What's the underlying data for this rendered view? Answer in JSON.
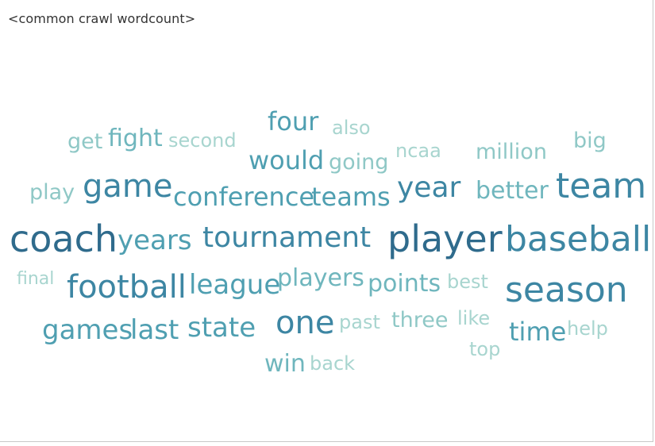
{
  "title": "<common crawl wordcount>",
  "chart_data": {
    "type": "wordcloud",
    "title": "<common crawl wordcount>",
    "words": [
      {
        "text": "coach",
        "weight": 10
      },
      {
        "text": "player",
        "weight": 10
      },
      {
        "text": "team",
        "weight": 9
      },
      {
        "text": "baseball",
        "weight": 9
      },
      {
        "text": "season",
        "weight": 9
      },
      {
        "text": "game",
        "weight": 8
      },
      {
        "text": "football",
        "weight": 8
      },
      {
        "text": "one",
        "weight": 8
      },
      {
        "text": "tournament",
        "weight": 7
      },
      {
        "text": "year",
        "weight": 7
      },
      {
        "text": "years",
        "weight": 6
      },
      {
        "text": "league",
        "weight": 6
      },
      {
        "text": "state",
        "weight": 6
      },
      {
        "text": "games",
        "weight": 6
      },
      {
        "text": "last",
        "weight": 6
      },
      {
        "text": "would",
        "weight": 5
      },
      {
        "text": "four",
        "weight": 5
      },
      {
        "text": "time",
        "weight": 5
      },
      {
        "text": "conference",
        "weight": 5
      },
      {
        "text": "teams",
        "weight": 5
      },
      {
        "text": "win",
        "weight": 4
      },
      {
        "text": "fight",
        "weight": 4
      },
      {
        "text": "players",
        "weight": 4
      },
      {
        "text": "points",
        "weight": 4
      },
      {
        "text": "better",
        "weight": 4
      },
      {
        "text": "going",
        "weight": 3
      },
      {
        "text": "three",
        "weight": 3
      },
      {
        "text": "million",
        "weight": 3
      },
      {
        "text": "big",
        "weight": 3
      },
      {
        "text": "play",
        "weight": 3
      },
      {
        "text": "get",
        "weight": 3
      },
      {
        "text": "second",
        "weight": 2
      },
      {
        "text": "also",
        "weight": 2
      },
      {
        "text": "ncaa",
        "weight": 2
      },
      {
        "text": "best",
        "weight": 2
      },
      {
        "text": "past",
        "weight": 2
      },
      {
        "text": "like",
        "weight": 2
      },
      {
        "text": "help",
        "weight": 2
      },
      {
        "text": "back",
        "weight": 2
      },
      {
        "text": "top",
        "weight": 2
      },
      {
        "text": "final",
        "weight": 1
      }
    ],
    "colors": [
      "#a8d5cf",
      "#8fc8c6",
      "#6fb6bd",
      "#4f9fb1",
      "#3d86a3",
      "#2f6b8c"
    ]
  }
}
